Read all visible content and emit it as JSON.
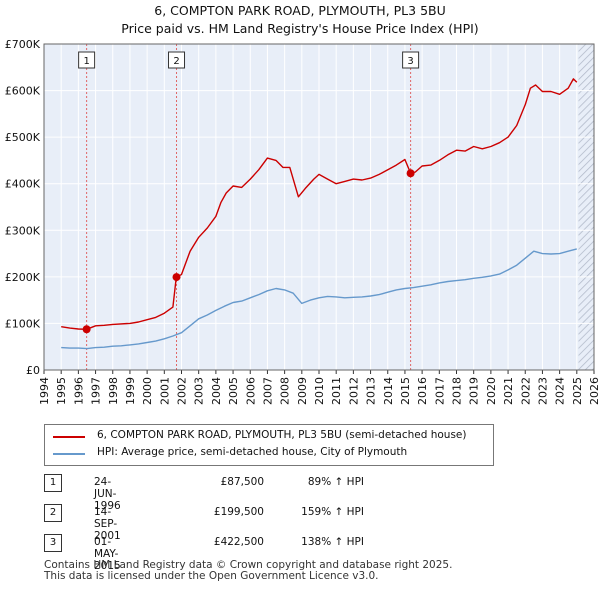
{
  "header": {
    "title": "6, COMPTON PARK ROAD, PLYMOUTH, PL3 5BU",
    "subtitle": "Price paid vs. HM Land Registry's House Price Index (HPI)"
  },
  "chart_data": {
    "type": "line",
    "xlim": [
      1994,
      2026
    ],
    "ylim": [
      0,
      700000
    ],
    "yticks": [
      0,
      100000,
      200000,
      300000,
      400000,
      500000,
      600000,
      700000
    ],
    "ytick_labels": [
      "£0",
      "£100K",
      "£200K",
      "£300K",
      "£400K",
      "£500K",
      "£600K",
      "£700K"
    ],
    "xticks": [
      1994,
      1995,
      1996,
      1997,
      1998,
      1999,
      2000,
      2001,
      2002,
      2003,
      2004,
      2005,
      2006,
      2007,
      2008,
      2009,
      2010,
      2011,
      2012,
      2013,
      2014,
      2015,
      2016,
      2017,
      2018,
      2019,
      2020,
      2021,
      2022,
      2023,
      2024,
      2025,
      2026
    ],
    "grid": true,
    "series": [
      {
        "name": "6, COMPTON PARK ROAD, PLYMOUTH, PL3 5BU (semi-detached house)",
        "color": "#cc0000",
        "x": [
          1995.0,
          1995.5,
          1996.0,
          1996.48,
          1997.0,
          1997.5,
          1998.0,
          1999.0,
          1999.5,
          2000.0,
          2000.5,
          2001.0,
          2001.5,
          2001.7,
          2002.0,
          2002.5,
          2003.0,
          2003.5,
          2004.0,
          2004.3,
          2004.6,
          2005.0,
          2005.5,
          2006.0,
          2006.5,
          2007.0,
          2007.5,
          2007.9,
          2008.3,
          2008.8,
          2009.2,
          2009.7,
          2010.0,
          2010.5,
          2011.0,
          2011.5,
          2012.0,
          2012.5,
          2013.0,
          2013.5,
          2014.0,
          2014.5,
          2015.0,
          2015.33,
          2015.6,
          2016.0,
          2016.5,
          2017.0,
          2017.5,
          2018.0,
          2018.5,
          2019.0,
          2019.5,
          2020.0,
          2020.5,
          2021.0,
          2021.5,
          2022.0,
          2022.3,
          2022.6,
          2023.0,
          2023.5,
          2024.0,
          2024.5,
          2024.8,
          2025.0
        ],
        "y": [
          93000,
          90000,
          88000,
          87500,
          95000,
          96000,
          98000,
          100000,
          103000,
          108000,
          113000,
          122000,
          135000,
          199500,
          205000,
          255000,
          285000,
          305000,
          330000,
          360000,
          380000,
          395000,
          392000,
          410000,
          430000,
          455000,
          450000,
          435000,
          435000,
          372000,
          390000,
          410000,
          420000,
          410000,
          400000,
          405000,
          410000,
          408000,
          412000,
          420000,
          430000,
          440000,
          452000,
          422500,
          425000,
          438000,
          440000,
          450000,
          462000,
          472000,
          470000,
          480000,
          475000,
          480000,
          488000,
          500000,
          525000,
          570000,
          605000,
          612000,
          598000,
          598000,
          592000,
          605000,
          625000,
          618000
        ]
      },
      {
        "name": "HPI: Average price, semi-detached house, City of Plymouth",
        "color": "#6699cc",
        "x": [
          1995.0,
          1995.5,
          1996.0,
          1996.5,
          1997.0,
          1997.5,
          1998.0,
          1998.5,
          1999.0,
          1999.5,
          2000.0,
          2000.5,
          2001.0,
          2001.5,
          2002.0,
          2002.5,
          2003.0,
          2003.5,
          2004.0,
          2004.5,
          2005.0,
          2005.5,
          2006.0,
          2006.5,
          2007.0,
          2007.5,
          2008.0,
          2008.5,
          2009.0,
          2009.5,
          2010.0,
          2010.5,
          2011.0,
          2011.5,
          2012.0,
          2012.5,
          2013.0,
          2013.5,
          2014.0,
          2014.5,
          2015.0,
          2015.5,
          2016.0,
          2016.5,
          2017.0,
          2017.5,
          2018.0,
          2018.5,
          2019.0,
          2019.5,
          2020.0,
          2020.5,
          2021.0,
          2021.5,
          2022.0,
          2022.5,
          2023.0,
          2023.5,
          2024.0,
          2024.5,
          2025.0
        ],
        "y": [
          48000,
          47000,
          47000,
          46000,
          48000,
          49000,
          51000,
          52000,
          54000,
          56000,
          59000,
          62000,
          67000,
          73000,
          80000,
          95000,
          110000,
          118000,
          128000,
          137000,
          145000,
          148000,
          155000,
          162000,
          170000,
          175000,
          172000,
          165000,
          143000,
          150000,
          155000,
          158000,
          157000,
          155000,
          156000,
          157000,
          159000,
          162000,
          167000,
          172000,
          175000,
          177000,
          180000,
          183000,
          187000,
          190000,
          192000,
          194000,
          197000,
          199000,
          202000,
          206000,
          215000,
          225000,
          240000,
          255000,
          250000,
          249000,
          250000,
          255000,
          260000
        ]
      }
    ],
    "sales": [
      {
        "label": "1",
        "year": 1996.48,
        "price": 87500
      },
      {
        "label": "2",
        "year": 2001.71,
        "price": 199500
      },
      {
        "label": "3",
        "year": 2015.33,
        "price": 422500
      }
    ]
  },
  "legend": {
    "items": [
      {
        "label": "6, COMPTON PARK ROAD, PLYMOUTH, PL3 5BU (semi-detached house)",
        "color": "#cc0000"
      },
      {
        "label": "HPI: Average price, semi-detached house, City of Plymouth",
        "color": "#6699cc"
      }
    ]
  },
  "sales_table": [
    {
      "num": "1",
      "date": "24-JUN-1996",
      "price": "£87,500",
      "hpi": "89% ↑ HPI"
    },
    {
      "num": "2",
      "date": "14-SEP-2001",
      "price": "£199,500",
      "hpi": "159% ↑ HPI"
    },
    {
      "num": "3",
      "date": "01-MAY-2015",
      "price": "£422,500",
      "hpi": "138% ↑ HPI"
    }
  ],
  "footer": {
    "line1": "Contains HM Land Registry data © Crown copyright and database right 2025.",
    "line2": "This data is licensed under the Open Government Licence v3.0."
  }
}
